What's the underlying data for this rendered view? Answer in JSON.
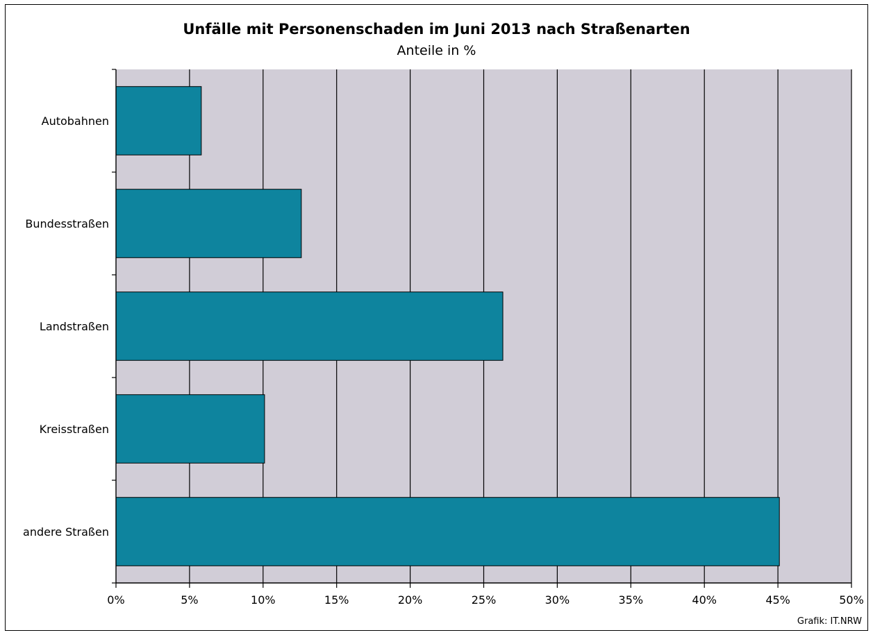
{
  "chart_data": {
    "type": "bar",
    "orientation": "horizontal",
    "title": "Unfälle mit Personenschaden im Juni 2013 nach Straßenarten",
    "subtitle": "Anteile in %",
    "categories": [
      "Autobahnen",
      "Bundesstraßen",
      "Landstraßen",
      "Kreisstraßen",
      "andere Straßen"
    ],
    "values": [
      5.8,
      12.6,
      26.3,
      10.1,
      45.1
    ],
    "xlim": [
      0,
      50
    ],
    "xticks": [
      0,
      5,
      10,
      15,
      20,
      25,
      30,
      35,
      40,
      45,
      50
    ],
    "xtick_labels": [
      "0%",
      "5%",
      "10%",
      "15%",
      "20%",
      "25%",
      "30%",
      "35%",
      "40%",
      "45%",
      "50%"
    ],
    "grid": true,
    "colors": {
      "bar": "#0e849e",
      "plot_background": "#d1cdd7",
      "grid": "#000000"
    },
    "source": "Grafik: IT.NRW"
  }
}
